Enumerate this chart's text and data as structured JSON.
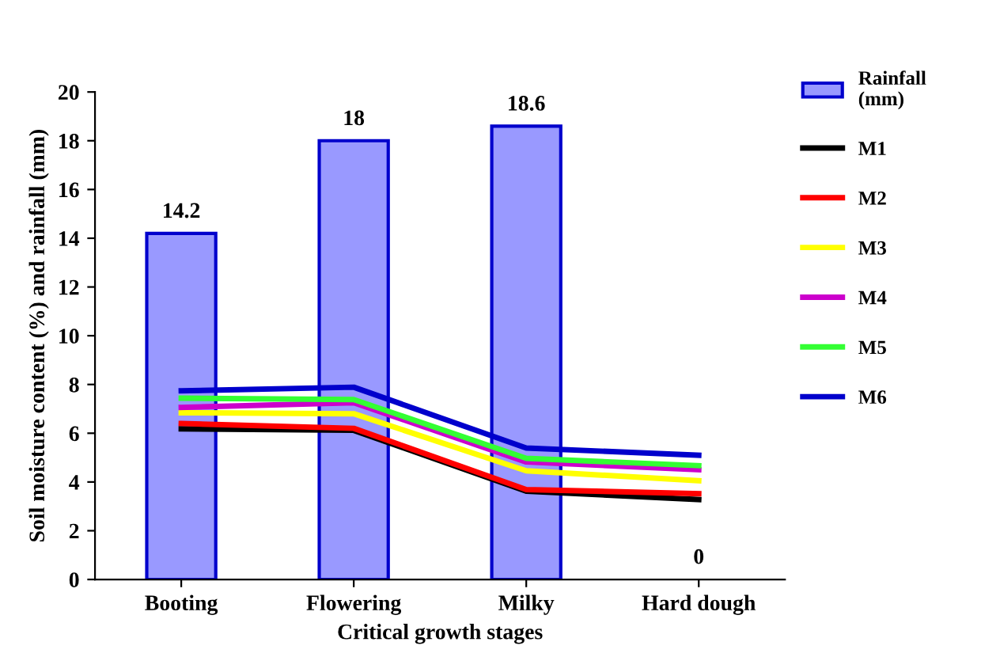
{
  "chart_data": {
    "type": "bar",
    "xlabel": "Critical growth stages",
    "ylabel": "Soil moisture content (%) and rainfall (mm)",
    "categories": [
      "Booting",
      "Flowering",
      "Milky",
      "Hard dough"
    ],
    "ylim": [
      0,
      20
    ],
    "yticks": [
      0,
      2,
      4,
      6,
      8,
      10,
      12,
      14,
      16,
      18,
      20
    ],
    "grid": false,
    "legend": "right",
    "series": [
      {
        "name": "Rainfall\n(mm)",
        "color": "#9999ff",
        "values": [
          14.2,
          18,
          18.6,
          0
        ],
        "value_labels": [
          "14.2",
          "18",
          "18.6",
          "0"
        ]
      },
      {
        "name": "M1",
        "type": "line",
        "color": "#000000",
        "values": [
          6.18,
          6.12,
          3.62,
          3.28
        ]
      },
      {
        "name": "M2",
        "type": "line",
        "color": "#ff0000",
        "values": [
          6.4,
          6.2,
          3.69,
          3.52
        ]
      },
      {
        "name": "M3",
        "type": "line",
        "color": "#ffff00",
        "values": [
          6.84,
          6.8,
          4.46,
          4.05
        ]
      },
      {
        "name": "M4",
        "type": "line",
        "color": "#cc00cc",
        "values": [
          7.06,
          7.25,
          4.82,
          4.5
        ]
      },
      {
        "name": "M5",
        "type": "line",
        "color": "#33ff33",
        "values": [
          7.44,
          7.38,
          4.97,
          4.67
        ]
      },
      {
        "name": "M6",
        "type": "line",
        "color": "#0000cc",
        "values": [
          7.74,
          7.89,
          5.39,
          5.1
        ]
      }
    ]
  }
}
